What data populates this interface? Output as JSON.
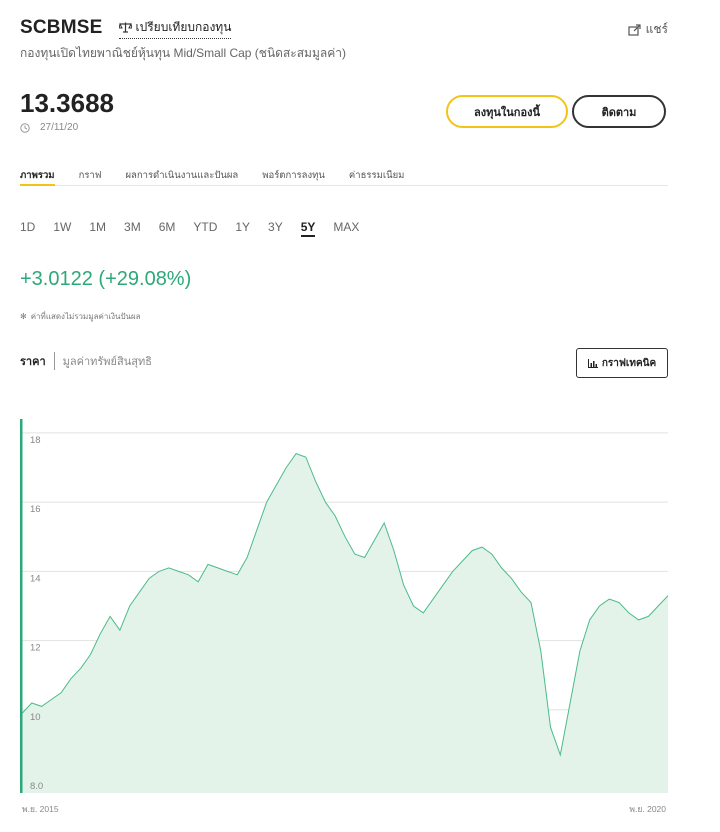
{
  "header": {
    "fund_code": "SCBMSE",
    "compare_label": "เปรียบเทียบกองทุน",
    "share_label": "แชร์",
    "fund_name": "กองทุนเปิดไทยพาณิชย์หุ้นทุน Mid/Small Cap (ชนิดสะสมมูลค่า)"
  },
  "quote": {
    "price": "13.3688",
    "date": "27/11/20"
  },
  "actions": {
    "invest_label": "ลงทุนในกองนี้",
    "follow_label": "ติดตาม"
  },
  "tabs": [
    "ภาพรวม",
    "กราฟ",
    "ผลการดำเนินงานและปันผล",
    "พอร์ตการลงทุน",
    "ค่าธรรมเนียม"
  ],
  "active_tab": 0,
  "ranges": [
    "1D",
    "1W",
    "1M",
    "3M",
    "6M",
    "YTD",
    "1Y",
    "3Y",
    "5Y",
    "MAX"
  ],
  "active_range": "5Y",
  "performance": {
    "change": "+3.0122",
    "change_pct": "(+29.08%)",
    "note_symbol": "✻",
    "note": "ค่าที่แสดงไม่รวมมูลค่าเงินปันผล"
  },
  "chart_modes": {
    "price_label": "ราคา",
    "nav_label": "มูลค่าทรัพย์สินสุทธิ",
    "technical_label": "กราฟเทคนิค"
  },
  "colors": {
    "accent_yellow": "#f2c418",
    "positive_green": "#2ca87a",
    "line_green": "#4cbb8a",
    "area_fill": "#e3f3ea"
  },
  "chart_data": {
    "type": "area",
    "x_start_label": "พ.ย. 2015",
    "x_end_label": "พ.ย. 2020",
    "y_ticks": [
      "18",
      "16",
      "14",
      "12",
      "10",
      "8.0"
    ],
    "ylim": [
      7.6,
      18.4
    ],
    "grid": true,
    "series": [
      {
        "values": [
          9.9,
          10.2,
          10.1,
          10.3,
          10.5,
          10.9,
          11.2,
          11.6,
          12.2,
          12.7,
          12.3,
          13.0,
          13.4,
          13.8,
          14.0,
          14.1,
          14.0,
          13.9,
          13.7,
          14.2,
          14.1,
          14.0,
          13.9,
          14.4,
          15.2,
          16.0,
          16.5,
          17.0,
          17.4,
          17.3,
          16.6,
          16.0,
          15.6,
          15.0,
          14.5,
          14.4,
          14.9,
          15.4,
          14.6,
          13.6,
          13.0,
          12.8,
          13.2,
          13.6,
          14.0,
          14.3,
          14.6,
          14.7,
          14.5,
          14.1,
          13.8,
          13.4,
          13.1,
          11.7,
          9.5,
          8.7,
          10.2,
          11.7,
          12.6,
          13.0,
          13.2,
          13.1,
          12.8,
          12.6,
          12.7,
          13.0,
          13.3
        ]
      }
    ]
  }
}
